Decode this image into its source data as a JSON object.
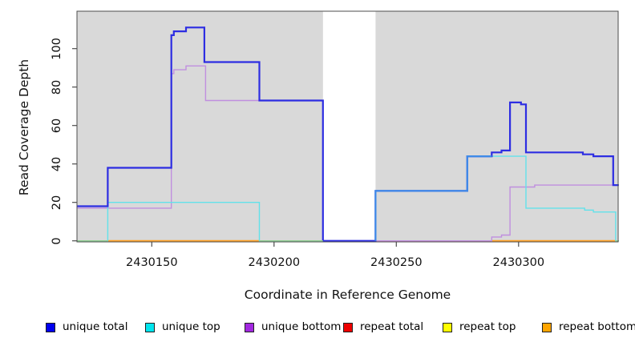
{
  "chart_data": {
    "type": "line",
    "subtype": "step-coverage-plot",
    "title": "",
    "xlabel": "Coordinate in Reference Genome",
    "ylabel": "Read Coverage Depth",
    "x_ticks": [
      2430150,
      2430200,
      2430250,
      2430300
    ],
    "y_ticks": [
      0,
      20,
      40,
      60,
      80,
      100
    ],
    "x_range": [
      2430119.4,
      2430341
    ],
    "y_range": [
      0,
      119.5
    ],
    "grid": "off",
    "legend_position": "bottom",
    "plot_background": "#d9d9d9",
    "no_data_band": {
      "from": 2430220,
      "to": 2430241.5,
      "color": "#ffffff"
    },
    "series": [
      {
        "name": "repeat top",
        "color_rendered": "#e8e86a",
        "width": 1.3,
        "segments": [
          {
            "points": [
              [
                2430119.4,
                0
              ]
            ],
            "end": 2430341
          }
        ]
      },
      {
        "name": "repeat total",
        "color_rendered": "#c6506c",
        "width": 1.4,
        "segments": [
          {
            "points": [
              [
                2430241.5,
                0
              ]
            ],
            "end": 2430341
          }
        ]
      },
      {
        "name": "repeat bottom",
        "color_rendered": "#ffa126",
        "width": 1.8,
        "segments": [
          {
            "points": [
              [
                2430132,
                0
              ]
            ],
            "end": 2430194
          },
          {
            "points": [
              [
                2430288.9,
                0
              ]
            ],
            "end": 2430339.7
          }
        ]
      },
      {
        "name": "unique bottom",
        "color_rendered": "#c08fdf",
        "width": 1.4,
        "segments": [
          {
            "points": [
              [
                2430119.4,
                17
              ],
              [
                2430158,
                87
              ],
              [
                2430159,
                89
              ],
              [
                2430164,
                91
              ],
              [
                2430172,
                73
              ],
              [
                2430220,
                0
              ],
              [
                2430289,
                2
              ],
              [
                2430293,
                3
              ],
              [
                2430296.5,
                28
              ],
              [
                2430306.6,
                29
              ]
            ],
            "end": 2430341
          }
        ]
      },
      {
        "name": "unique top",
        "color_rendered": "#62e2ea",
        "width": 1.4,
        "segments": [
          {
            "points": [
              [
                2430119.4,
                0
              ],
              [
                2430132,
                20
              ],
              [
                2430194,
                0
              ],
              [
                2430241.5,
                26
              ],
              [
                2430279,
                44
              ],
              [
                2430303,
                17
              ],
              [
                2430327,
                16
              ],
              [
                2430330.6,
                15
              ],
              [
                2430339.7,
                0
              ]
            ],
            "end": 2430341
          }
        ]
      },
      {
        "name": "unique total",
        "color_rendered": "#2d2de2",
        "width": 2.2,
        "segments": [
          {
            "points": [
              [
                2430119.4,
                18
              ],
              [
                2430132,
                38
              ],
              [
                2430158,
                107
              ],
              [
                2430159,
                109
              ],
              [
                2430164,
                111
              ],
              [
                2430171.5,
                93
              ],
              [
                2430194,
                73
              ],
              [
                2430220,
                0
              ],
              [
                2430241.5,
                26
              ],
              [
                2430279,
                44
              ],
              [
                2430289,
                46
              ],
              [
                2430293,
                47
              ],
              [
                2430296.5,
                72
              ],
              [
                2430301,
                71
              ],
              [
                2430303,
                46
              ],
              [
                2430326.3,
                45
              ],
              [
                2430330.6,
                44
              ],
              [
                2430338.7,
                29
              ]
            ],
            "end": 2430341
          }
        ]
      }
    ],
    "overlap_overlays": [
      {
        "name": "unique-top + repeat-top at zero (green blend)",
        "color": "#90ce90",
        "width": 1.4,
        "vertices": [
          [
            2430119.4,
            0
          ],
          [
            2430132,
            0
          ]
        ]
      },
      {
        "name": "unique-top + repeat-top at zero (green blend)",
        "color": "#90ce90",
        "width": 1.4,
        "vertices": [
          [
            2430194,
            0
          ],
          [
            2430220,
            0
          ]
        ]
      },
      {
        "name": "unique-top + repeat-top at zero (green blend)",
        "color": "#90ce90",
        "width": 1.4,
        "vertices": [
          [
            2430339.7,
            0
          ],
          [
            2430341,
            0
          ]
        ]
      },
      {
        "name": "unique-total over unique-top (azure blend)",
        "color": "#3e8be8",
        "width": 2.2,
        "vertices": [
          [
            2430241.5,
            0
          ],
          [
            2430241.5,
            26
          ],
          [
            2430279,
            26
          ],
          [
            2430279,
            44
          ],
          [
            2430289,
            44
          ]
        ]
      }
    ],
    "legend": [
      {
        "label": "unique total",
        "color": "#0000ee"
      },
      {
        "label": "unique top",
        "color": "#00e5ee"
      },
      {
        "label": "unique bottom",
        "color": "#a228e0"
      },
      {
        "label": "repeat total",
        "color": "#ee0000"
      },
      {
        "label": "repeat top",
        "color": "#ffff00"
      },
      {
        "label": "repeat bottom",
        "color": "#ffa500"
      }
    ]
  }
}
